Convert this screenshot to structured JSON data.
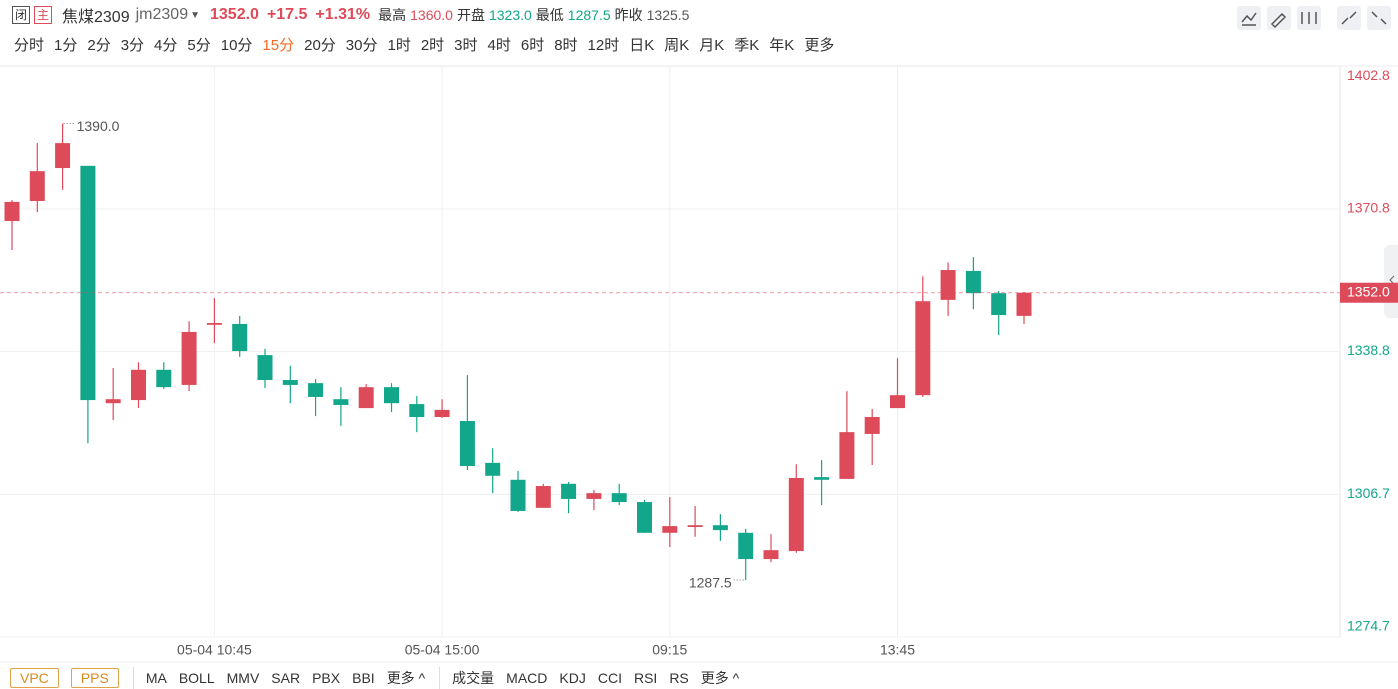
{
  "header": {
    "status": "闭",
    "mode": "主",
    "name": "焦煤2309",
    "code": "jm2309",
    "price": "1352.0",
    "change": "+17.5",
    "change_pct": "+1.31%",
    "stats": [
      {
        "label": "最高",
        "value": "1360.0"
      },
      {
        "label": "开盘",
        "value": "1323.0"
      },
      {
        "label": "最低",
        "value": "1287.5"
      },
      {
        "label": "昨收",
        "value": "1325.5"
      }
    ]
  },
  "periods": [
    {
      "label": "分时"
    },
    {
      "label": "1分"
    },
    {
      "label": "2分"
    },
    {
      "label": "3分"
    },
    {
      "label": "4分"
    },
    {
      "label": "5分"
    },
    {
      "label": "10分"
    },
    {
      "label": "15分",
      "active": true
    },
    {
      "label": "20分"
    },
    {
      "label": "30分"
    },
    {
      "label": "1时"
    },
    {
      "label": "2时"
    },
    {
      "label": "3时"
    },
    {
      "label": "4时"
    },
    {
      "label": "6时"
    },
    {
      "label": "8时"
    },
    {
      "label": "12时"
    },
    {
      "label": "日K"
    },
    {
      "label": "周K"
    },
    {
      "label": "月K"
    },
    {
      "label": "季K"
    },
    {
      "label": "年K"
    },
    {
      "label": "更多"
    }
  ],
  "indicators": {
    "boxed": [
      "VPC",
      "PPS"
    ],
    "main": [
      "MA",
      "BOLL",
      "MMV",
      "SAR",
      "PBX",
      "BBI",
      "更多 ^"
    ],
    "sub": [
      "成交量",
      "MACD",
      "KDJ",
      "CCI",
      "RSI",
      "RS",
      "更多 ^"
    ]
  },
  "chart_data": {
    "type": "candlestick",
    "categories": [
      null,
      null,
      null,
      null,
      null,
      null,
      null,
      null,
      "05-04 10:45",
      null,
      null,
      null,
      null,
      null,
      null,
      null,
      null,
      "05-04 15:00",
      null,
      null,
      null,
      null,
      null,
      null,
      null,
      null,
      "09:15",
      null,
      null,
      null,
      null,
      null,
      null,
      null,
      null,
      "13:45",
      null,
      null,
      null,
      null,
      null
    ],
    "open": [
      1368.1,
      1372.6,
      1380.0,
      1380.5,
      1327.2,
      1327.9,
      1334.7,
      1331.3,
      1344.8,
      1345.0,
      1338.0,
      1332.4,
      1331.7,
      1328.1,
      1326.1,
      1330.8,
      1327.0,
      1324.1,
      1323.2,
      1313.8,
      1310.0,
      1303.7,
      1309.1,
      1305.7,
      1307.0,
      1305.0,
      1298.1,
      1299.4,
      1299.8,
      1298.1,
      1292.2,
      1294.0,
      1310.6,
      1310.2,
      1320.3,
      1326.1,
      1329.0,
      1350.4,
      1356.9,
      1351.9,
      1346.8
    ],
    "high": [
      1372.8,
      1385.6,
      1390.0,
      1380.5,
      1335.1,
      1336.4,
      1336.4,
      1345.6,
      1350.8,
      1346.8,
      1339.4,
      1335.6,
      1332.6,
      1330.8,
      1331.5,
      1331.7,
      1328.8,
      1328.1,
      1333.5,
      1317.1,
      1312.0,
      1309.1,
      1309.5,
      1307.7,
      1309.1,
      1305.5,
      1306.1,
      1304.1,
      1302.3,
      1299.0,
      1297.8,
      1313.5,
      1314.4,
      1329.9,
      1325.9,
      1337.3,
      1355.7,
      1358.8,
      1360.0,
      1352.4,
      1352.2
    ],
    "low": [
      1361.6,
      1370.1,
      1375.1,
      1318.2,
      1323.4,
      1326.1,
      1330.4,
      1329.9,
      1340.7,
      1337.6,
      1330.6,
      1327.2,
      1324.3,
      1322.1,
      1326.1,
      1325.2,
      1320.7,
      1323.9,
      1312.2,
      1307.0,
      1302.8,
      1303.7,
      1302.5,
      1303.2,
      1304.3,
      1298.1,
      1294.9,
      1297.2,
      1296.3,
      1287.5,
      1291.5,
      1293.6,
      1304.3,
      1310.2,
      1313.3,
      1326.1,
      1328.6,
      1346.8,
      1348.3,
      1342.5,
      1345.0
    ],
    "close": [
      1372.4,
      1379.3,
      1385.6,
      1327.9,
      1328.1,
      1334.7,
      1330.8,
      1343.2,
      1345.2,
      1338.9,
      1332.4,
      1331.3,
      1328.6,
      1326.8,
      1330.8,
      1327.2,
      1324.1,
      1325.7,
      1313.1,
      1310.9,
      1303.0,
      1308.6,
      1305.7,
      1307.0,
      1305.0,
      1298.1,
      1299.6,
      1299.8,
      1298.7,
      1292.2,
      1294.2,
      1310.4,
      1310.0,
      1320.7,
      1324.1,
      1329.0,
      1350.1,
      1357.1,
      1351.9,
      1347.0,
      1352.0
    ],
    "up_color": "#dd4b5a",
    "down_color": "#12a68a",
    "ylim": [
      1274.7,
      1402.8
    ],
    "yticks": [
      1274.7,
      1306.7,
      1338.8,
      1370.8,
      1402.8
    ],
    "grid": true,
    "last_price": {
      "value": 1352.0,
      "label": "1352.0"
    },
    "annotations": [
      {
        "value": 1390.0,
        "label": "1390.0"
      },
      {
        "value": 1287.5,
        "label": "1287.5"
      }
    ]
  }
}
